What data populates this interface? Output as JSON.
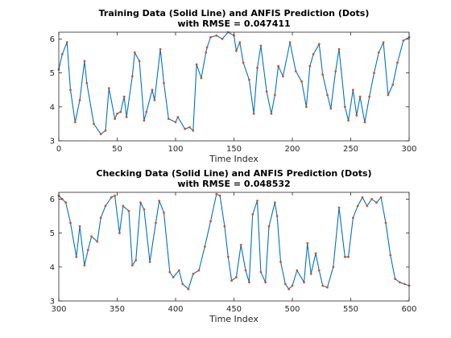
{
  "chart_data": [
    {
      "type": "line",
      "title_line1": "Training Data (Solid Line) and ANFIS Prediction (Dots)",
      "title_line2": "with RMSE = 0.047411",
      "xlabel": "Time Index",
      "ylabel": "",
      "xlim": [
        0,
        300
      ],
      "ylim": [
        3,
        6.2
      ],
      "xticks": [
        0,
        50,
        100,
        150,
        200,
        250,
        300
      ],
      "yticks": [
        3,
        4,
        5,
        6
      ],
      "grid": false,
      "series": [
        {
          "style": "solid",
          "color": "#0072bd",
          "x": [
            0,
            3,
            7,
            10,
            14,
            18,
            22,
            24,
            30,
            36,
            40,
            43,
            48,
            50,
            53,
            56,
            58,
            63,
            65,
            69,
            73,
            75,
            80,
            82,
            87,
            90,
            94,
            100,
            102,
            108,
            112,
            115,
            118,
            122,
            126,
            127,
            130,
            135,
            140,
            145,
            150,
            152,
            155,
            158,
            163,
            167,
            170,
            173,
            178,
            182,
            185,
            188,
            192,
            198,
            203,
            208,
            212,
            215,
            218,
            223,
            226,
            230,
            233,
            237,
            240,
            245,
            248,
            252,
            255,
            258,
            262,
            266,
            270,
            274,
            278,
            282,
            286,
            290,
            295,
            300
          ],
          "y": [
            5.1,
            5.55,
            5.9,
            4.5,
            3.55,
            4.2,
            5.35,
            4.7,
            3.5,
            3.2,
            3.3,
            4.55,
            3.65,
            3.8,
            3.85,
            4.3,
            3.7,
            4.9,
            5.6,
            5.35,
            3.6,
            3.85,
            4.5,
            4.2,
            5.7,
            4.7,
            3.65,
            3.55,
            3.7,
            3.35,
            3.4,
            3.3,
            5.25,
            4.85,
            5.6,
            5.75,
            6.05,
            6.1,
            6.0,
            6.2,
            6.1,
            5.65,
            5.9,
            5.3,
            4.8,
            3.8,
            5.15,
            5.8,
            4.45,
            3.8,
            4.35,
            5.2,
            4.9,
            5.9,
            5.05,
            4.75,
            4.0,
            5.2,
            5.55,
            5.85,
            4.95,
            4.35,
            3.95,
            5.05,
            5.7,
            4.0,
            3.6,
            4.5,
            3.75,
            4.3,
            3.55,
            4.3,
            5.0,
            5.6,
            5.9,
            4.35,
            4.65,
            5.3,
            5.95,
            6.05
          ]
        },
        {
          "style": "dots",
          "color": "#d95319"
        }
      ]
    },
    {
      "type": "line",
      "title_line1": "Checking Data (Solid Line) and ANFIS Prediction (Dots)",
      "title_line2": "with RMSE = 0.048532",
      "xlabel": "Time Index",
      "ylabel": "",
      "xlim": [
        300,
        600
      ],
      "ylim": [
        3,
        6.2
      ],
      "xticks": [
        300,
        350,
        400,
        450,
        500,
        550,
        600
      ],
      "yticks": [
        3,
        4,
        5,
        6
      ],
      "grid": false,
      "series": [
        {
          "style": "solid",
          "color": "#0072bd",
          "x": [
            300,
            303,
            306,
            310,
            315,
            318,
            322,
            325,
            328,
            333,
            336,
            340,
            345,
            348,
            352,
            355,
            360,
            363,
            366,
            370,
            373,
            378,
            383,
            386,
            390,
            395,
            398,
            403,
            406,
            411,
            415,
            420,
            425,
            430,
            435,
            438,
            442,
            445,
            448,
            452,
            456,
            460,
            463,
            466,
            470,
            473,
            477,
            480,
            485,
            487,
            490,
            494,
            497,
            500,
            504,
            510,
            513,
            516,
            520,
            523,
            526,
            530,
            535,
            540,
            545,
            548,
            552,
            556,
            560,
            564,
            568,
            572,
            576,
            580,
            584,
            588,
            592,
            596,
            600
          ],
          "y": [
            6.1,
            6.0,
            5.9,
            5.3,
            4.3,
            5.2,
            4.05,
            4.5,
            4.9,
            4.75,
            5.45,
            5.8,
            6.05,
            6.1,
            5.0,
            5.8,
            5.65,
            4.05,
            4.2,
            5.9,
            5.7,
            4.15,
            5.3,
            5.95,
            5.6,
            3.85,
            3.7,
            3.9,
            3.5,
            3.35,
            3.8,
            3.9,
            4.6,
            5.35,
            6.15,
            6.1,
            5.2,
            4.3,
            3.6,
            3.7,
            4.65,
            3.9,
            3.55,
            5.55,
            5.95,
            3.85,
            3.55,
            5.2,
            5.9,
            5.5,
            4.15,
            3.5,
            3.35,
            3.45,
            3.9,
            3.55,
            4.7,
            3.8,
            4.4,
            3.9,
            3.45,
            3.4,
            4.0,
            5.75,
            4.3,
            4.3,
            5.45,
            5.8,
            6.05,
            5.8,
            6.0,
            5.9,
            6.05,
            5.3,
            4.35,
            3.65,
            3.55,
            3.5,
            3.45
          ]
        },
        {
          "style": "dots",
          "color": "#d95319"
        }
      ]
    }
  ]
}
